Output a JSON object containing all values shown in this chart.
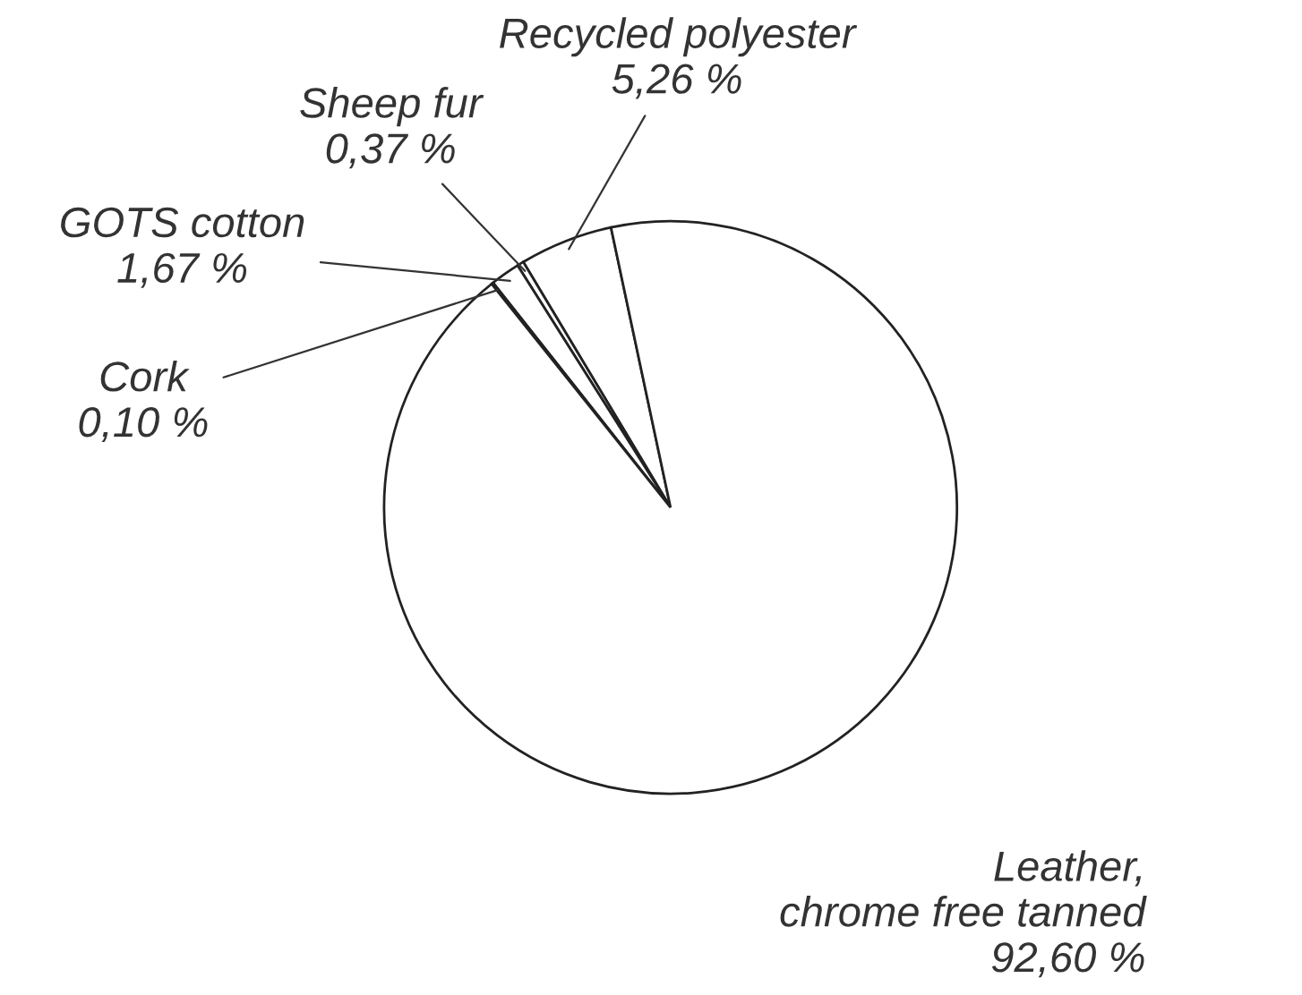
{
  "chart_data": {
    "type": "pie",
    "categories": [
      "Recycled polyester",
      "Sheep fur",
      "GOTS cotton",
      "Cork",
      "Leather,\nchrome free tanned"
    ],
    "values": [
      5.26,
      0.37,
      1.67,
      0.1,
      92.6
    ],
    "value_labels": [
      "5,26 %",
      "0,37 %",
      "1,67 %",
      "0,10 %",
      "92,60 %"
    ],
    "colors": [
      "#ffffff",
      "#ffffff",
      "#ffffff",
      "#ffffff",
      "#ffffff"
    ],
    "legend": false
  }
}
